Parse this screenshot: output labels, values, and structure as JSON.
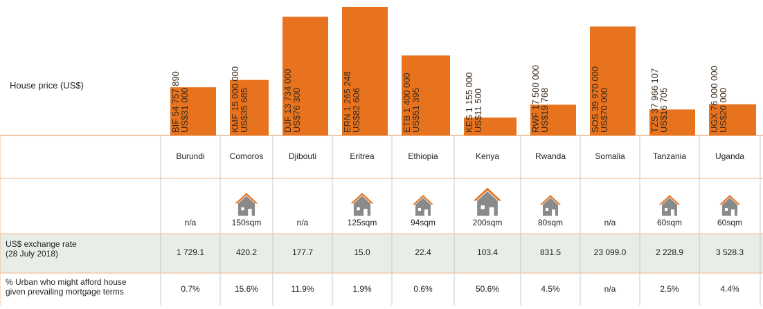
{
  "chart_data": {
    "type": "bar",
    "label": "House price (US$)",
    "categories": [
      "Burundi",
      "Comoros",
      "Djibouti",
      "Eritrea",
      "Ethiopia",
      "Kenya",
      "Rwanda",
      "Somalia",
      "Tanzania",
      "Uganda"
    ],
    "local_prices": [
      "BIF 54 757 890",
      "KMF 15 000 000",
      "DJF 13 734 000",
      "ERN 1 265 248",
      "ETB 1 400 000",
      "KES 1 155 000",
      "RWF 17 500 000",
      "SOS 39 970 000",
      "TZS 37 966 107",
      "UGX 76 000 000"
    ],
    "values": [
      31000,
      35685,
      76300,
      82606,
      51395,
      11500,
      19768,
      70000,
      16705,
      20000
    ],
    "value_labels": [
      "US$31 000",
      "US$35 685",
      "US$76 300",
      "US$82 606",
      "US$51 395",
      "US$11 500",
      "US$19 768",
      "US$70 000",
      "US$16 705",
      "US$20 000"
    ],
    "color": "#e8731f"
  },
  "table": {
    "house_sizes": [
      "n/a",
      "150sqm",
      "n/a",
      "125sqm",
      "94sqm",
      "200sqm",
      "80sqm",
      "n/a",
      "60sqm",
      "60sqm"
    ],
    "exchange_label": [
      "US$ exchange rate",
      "(28 July 2018)"
    ],
    "exchange_rates": [
      "1 729.1",
      "420.2",
      "177.7",
      "15.0",
      "22.4",
      "103.4",
      "831.5",
      "23 099.0",
      "2 228.9",
      "3 528.3"
    ],
    "afford_label": [
      "% Urban who might afford house",
      "given prevailing mortgage terms"
    ],
    "afford": [
      "0.7%",
      "15.6%",
      "11.9%",
      "1.9%",
      "0.6%",
      "50.6%",
      "4.5%",
      "n/a",
      "2.5%",
      "4.4%"
    ]
  }
}
